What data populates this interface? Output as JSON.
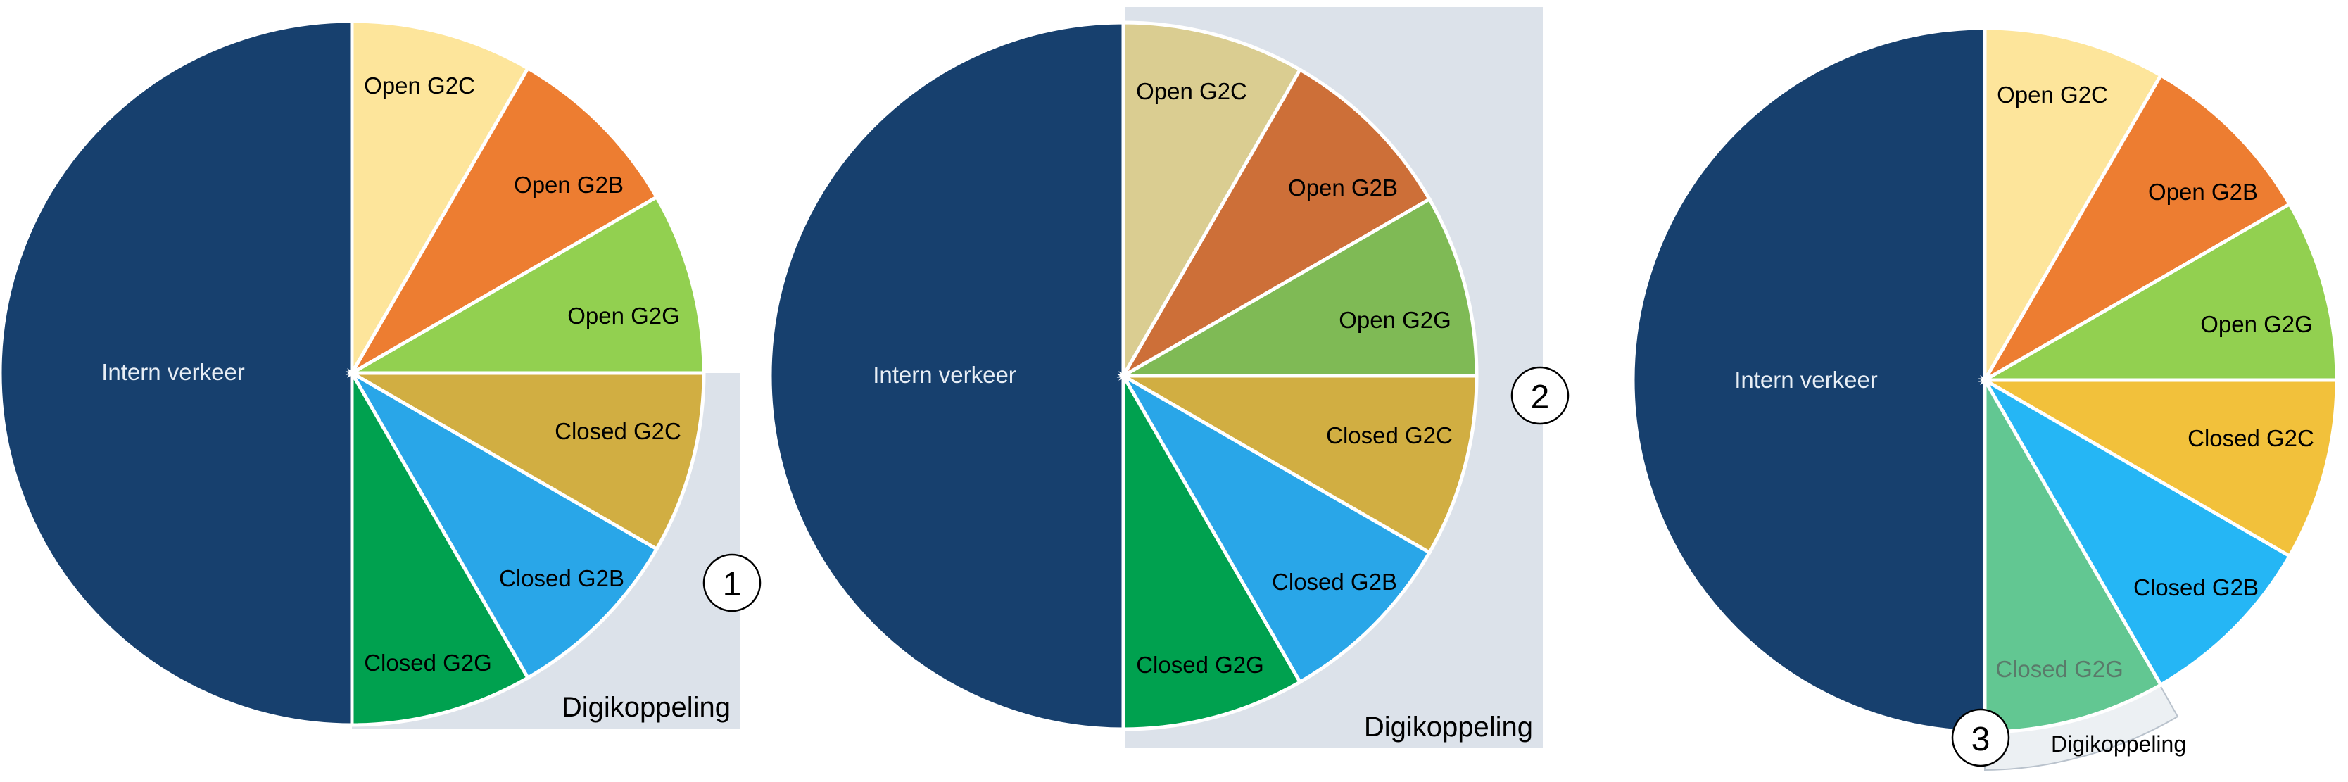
{
  "colors": {
    "intern": "#17406e",
    "open_g2c": "#fde59b",
    "open_g2b": "#ed7d31",
    "open_g2g": "#92d050",
    "closed_g2c": "#d1ae42",
    "closed_g2b": "#29a6e8",
    "closed_g2g": "#00a14f",
    "zone": "#dce2ea",
    "label_dark": "#000000",
    "label_light": "#e8eef5"
  },
  "diagrams": [
    {
      "badge": "1",
      "zone_label": "Digikoppeling",
      "slices": [
        {
          "key": "intern",
          "label": "Intern verkeer"
        },
        {
          "key": "open_g2c",
          "label": "Open G2C"
        },
        {
          "key": "open_g2b",
          "label": "Open G2B"
        },
        {
          "key": "open_g2g",
          "label": "Open G2G"
        },
        {
          "key": "closed_g2c",
          "label": "Closed G2C"
        },
        {
          "key": "closed_g2b",
          "label": "Closed G2B"
        },
        {
          "key": "closed_g2g",
          "label": "Closed G2G"
        }
      ]
    },
    {
      "badge": "2",
      "zone_label": "Digikoppeling",
      "slices": [
        {
          "key": "intern",
          "label": "Intern verkeer"
        },
        {
          "key": "open_g2c",
          "label": "Open G2C"
        },
        {
          "key": "open_g2b",
          "label": "Open G2B"
        },
        {
          "key": "open_g2g",
          "label": "Open G2G"
        },
        {
          "key": "closed_g2c",
          "label": "Closed G2C"
        },
        {
          "key": "closed_g2b",
          "label": "Closed G2B"
        },
        {
          "key": "closed_g2g",
          "label": "Closed G2G"
        }
      ]
    },
    {
      "badge": "3",
      "zone_label": "Digikoppeling",
      "slices": [
        {
          "key": "intern",
          "label": "Intern verkeer"
        },
        {
          "key": "open_g2c",
          "label": "Open G2C"
        },
        {
          "key": "open_g2b",
          "label": "Open G2B"
        },
        {
          "key": "open_g2g",
          "label": "Open G2G"
        },
        {
          "key": "closed_g2c",
          "label": "Closed G2C"
        },
        {
          "key": "closed_g2b",
          "label": "Closed G2B"
        },
        {
          "key": "closed_g2g",
          "label": "Closed G2G"
        }
      ]
    }
  ]
}
